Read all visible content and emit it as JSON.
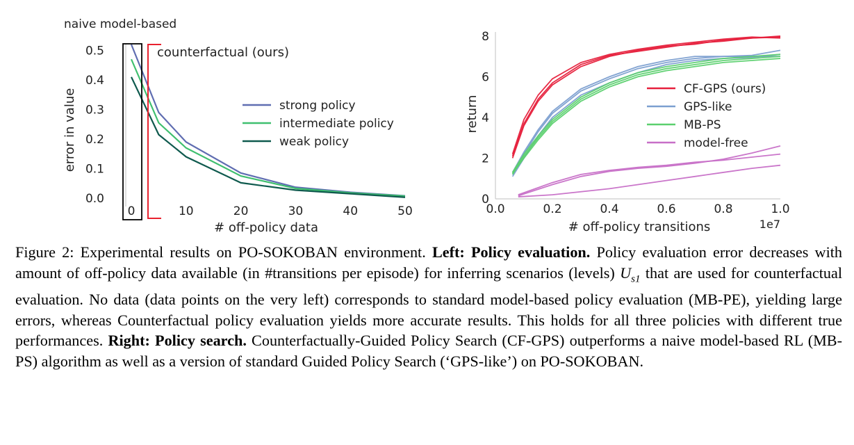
{
  "chart_data": [
    {
      "type": "line",
      "title": "naive model-based",
      "xlabel": "# off-policy data",
      "ylabel": "error in value",
      "x": [
        0,
        5,
        10,
        20,
        30,
        40,
        50
      ],
      "xticks": [
        0,
        10,
        20,
        30,
        40,
        50
      ],
      "yticks": [
        0.0,
        0.1,
        0.2,
        0.3,
        0.4,
        0.5
      ],
      "ytick_labels": [
        "0.0",
        "0.1",
        "0.2",
        "0.3",
        "0.4",
        "0.5"
      ],
      "xlim": [
        0,
        50
      ],
      "ylim": [
        0,
        0.56
      ],
      "series": [
        {
          "name": "strong policy",
          "color": "#5f6db1",
          "values": [
            0.52,
            0.29,
            0.19,
            0.085,
            0.037,
            0.02,
            0.008
          ]
        },
        {
          "name": "intermediate policy",
          "color": "#3fbf6f",
          "values": [
            0.47,
            0.255,
            0.17,
            0.075,
            0.033,
            0.018,
            0.007
          ]
        },
        {
          "name": "weak policy",
          "color": "#0f5a4e",
          "values": [
            0.41,
            0.215,
            0.14,
            0.052,
            0.027,
            0.015,
            0.003
          ]
        }
      ],
      "annotations": {
        "counterfactual": "counterfactual (ours)",
        "counterfactual_color": "#e8212e",
        "naive_box_color": "#000000"
      },
      "legend": "center-right",
      "grid": false
    },
    {
      "type": "line",
      "xlabel": "# off-policy transitions",
      "ylabel": "return",
      "x_scale_label": "1e7",
      "xticks": [
        0.0,
        0.2,
        0.4,
        0.6,
        0.8,
        1.0
      ],
      "xtick_labels": [
        "0.0",
        "0.2",
        "0.4",
        "0.6",
        "0.8",
        "1.0"
      ],
      "yticks": [
        0,
        2,
        4,
        6,
        8
      ],
      "ytick_labels": [
        "0",
        "2",
        "4",
        "6",
        "8"
      ],
      "xlim": [
        0,
        1.0
      ],
      "ylim": [
        0,
        8.2
      ],
      "legend": "center-right",
      "grid": false,
      "series": [
        {
          "name": "CF-GPS (ours)",
          "color": "#e6203c",
          "runs": [
            {
              "x": [
                0.06,
                0.1,
                0.15,
                0.2,
                0.3,
                0.4,
                0.5,
                0.6,
                0.7,
                0.8,
                0.9,
                1.0
              ],
              "y": [
                2.0,
                3.6,
                4.8,
                5.6,
                6.5,
                7.0,
                7.3,
                7.5,
                7.6,
                7.8,
                7.9,
                7.95
              ]
            },
            {
              "x": [
                0.06,
                0.1,
                0.15,
                0.2,
                0.3,
                0.4,
                0.5,
                0.6,
                0.7,
                0.8,
                0.9,
                1.0
              ],
              "y": [
                2.2,
                3.9,
                5.1,
                5.9,
                6.7,
                7.1,
                7.35,
                7.55,
                7.7,
                7.85,
                7.95,
                7.9
              ]
            },
            {
              "x": [
                0.06,
                0.1,
                0.15,
                0.2,
                0.3,
                0.4,
                0.5,
                0.6,
                0.7,
                0.8,
                0.9,
                1.0
              ],
              "y": [
                2.1,
                3.7,
                4.9,
                5.7,
                6.6,
                7.05,
                7.25,
                7.45,
                7.65,
                7.75,
                7.9,
                8.0
              ]
            }
          ]
        },
        {
          "name": "GPS-like",
          "color": "#7c9fd0",
          "runs": [
            {
              "x": [
                0.06,
                0.1,
                0.15,
                0.2,
                0.3,
                0.4,
                0.5,
                0.6,
                0.7,
                0.8,
                0.9,
                1.0
              ],
              "y": [
                1.2,
                2.2,
                3.3,
                4.2,
                5.3,
                5.9,
                6.4,
                6.7,
                6.9,
                7.0,
                7.05,
                7.3
              ]
            },
            {
              "x": [
                0.06,
                0.1,
                0.15,
                0.2,
                0.3,
                0.4,
                0.5,
                0.6,
                0.7,
                0.8,
                0.9,
                1.0
              ],
              "y": [
                1.1,
                2.0,
                3.1,
                4.0,
                5.1,
                5.7,
                6.2,
                6.6,
                6.8,
                6.9,
                6.95,
                7.1
              ]
            },
            {
              "x": [
                0.06,
                0.1,
                0.15,
                0.2,
                0.3,
                0.4,
                0.5,
                0.6,
                0.7,
                0.8,
                0.9,
                1.0
              ],
              "y": [
                1.3,
                2.3,
                3.4,
                4.3,
                5.4,
                6.0,
                6.5,
                6.8,
                7.0,
                7.0,
                7.0,
                7.0
              ]
            }
          ]
        },
        {
          "name": "MB-PS",
          "color": "#5bd06e",
          "runs": [
            {
              "x": [
                0.06,
                0.1,
                0.15,
                0.2,
                0.3,
                0.4,
                0.5,
                0.6,
                0.7,
                0.8,
                0.9,
                1.0
              ],
              "y": [
                1.2,
                2.1,
                3.0,
                3.8,
                4.9,
                5.6,
                6.1,
                6.4,
                6.6,
                6.8,
                6.9,
                7.0
              ]
            },
            {
              "x": [
                0.06,
                0.1,
                0.15,
                0.2,
                0.3,
                0.4,
                0.5,
                0.6,
                0.7,
                0.8,
                0.9,
                1.0
              ],
              "y": [
                1.3,
                2.2,
                3.1,
                3.9,
                5.0,
                5.7,
                6.2,
                6.5,
                6.7,
                6.9,
                7.0,
                7.1
              ]
            },
            {
              "x": [
                0.06,
                0.1,
                0.15,
                0.2,
                0.3,
                0.4,
                0.5,
                0.6,
                0.7,
                0.8,
                0.9,
                1.0
              ],
              "y": [
                1.25,
                2.0,
                2.9,
                3.7,
                4.8,
                5.5,
                6.0,
                6.3,
                6.5,
                6.7,
                6.8,
                6.9
              ]
            }
          ]
        },
        {
          "name": "model-free",
          "color": "#c76fc7",
          "runs": [
            {
              "x": [
                0.08,
                0.2,
                0.3,
                0.4,
                0.5,
                0.6,
                0.7,
                0.8,
                0.9,
                1.0
              ],
              "y": [
                0.15,
                0.7,
                1.1,
                1.35,
                1.5,
                1.6,
                1.75,
                1.95,
                2.25,
                2.6
              ]
            },
            {
              "x": [
                0.08,
                0.2,
                0.3,
                0.4,
                0.5,
                0.6,
                0.7,
                0.8,
                0.9,
                1.0
              ],
              "y": [
                0.2,
                0.8,
                1.2,
                1.4,
                1.55,
                1.65,
                1.8,
                1.9,
                2.05,
                2.2
              ]
            },
            {
              "x": [
                0.08,
                0.2,
                0.3,
                0.4,
                0.5,
                0.6,
                0.7,
                0.8,
                0.9,
                1.0
              ],
              "y": [
                0.1,
                0.2,
                0.35,
                0.5,
                0.7,
                0.9,
                1.1,
                1.3,
                1.5,
                1.65
              ]
            }
          ]
        }
      ]
    }
  ],
  "caption": {
    "prefix": "Figure 2: Experimental results on PO-SOKOBAN environment.",
    "left_heading": "Left: Policy evaluation.",
    "left_text_a": "Policy evaluation error decreases with amount of off-policy data available (in #transitions per episode) for inferring scenarios (levels)",
    "math_var": "U",
    "math_sub": "s1",
    "left_text_b": "that are used for counterfactual evaluation. No data (data points on the very left) corresponds to standard model-based policy evaluation (MB-PE), yielding large errors, whereas Counterfactual policy evaluation yields more accurate results. This holds for all three policies with different true performances.",
    "right_heading": "Right: Policy search.",
    "right_text": "Counterfactually-Guided Policy Search (CF-GPS) outperforms a naive model-based RL (MB-PS) algorithm as well as a version of standard Guided Policy Search (‘GPS-like’) on PO-SOKOBAN."
  }
}
